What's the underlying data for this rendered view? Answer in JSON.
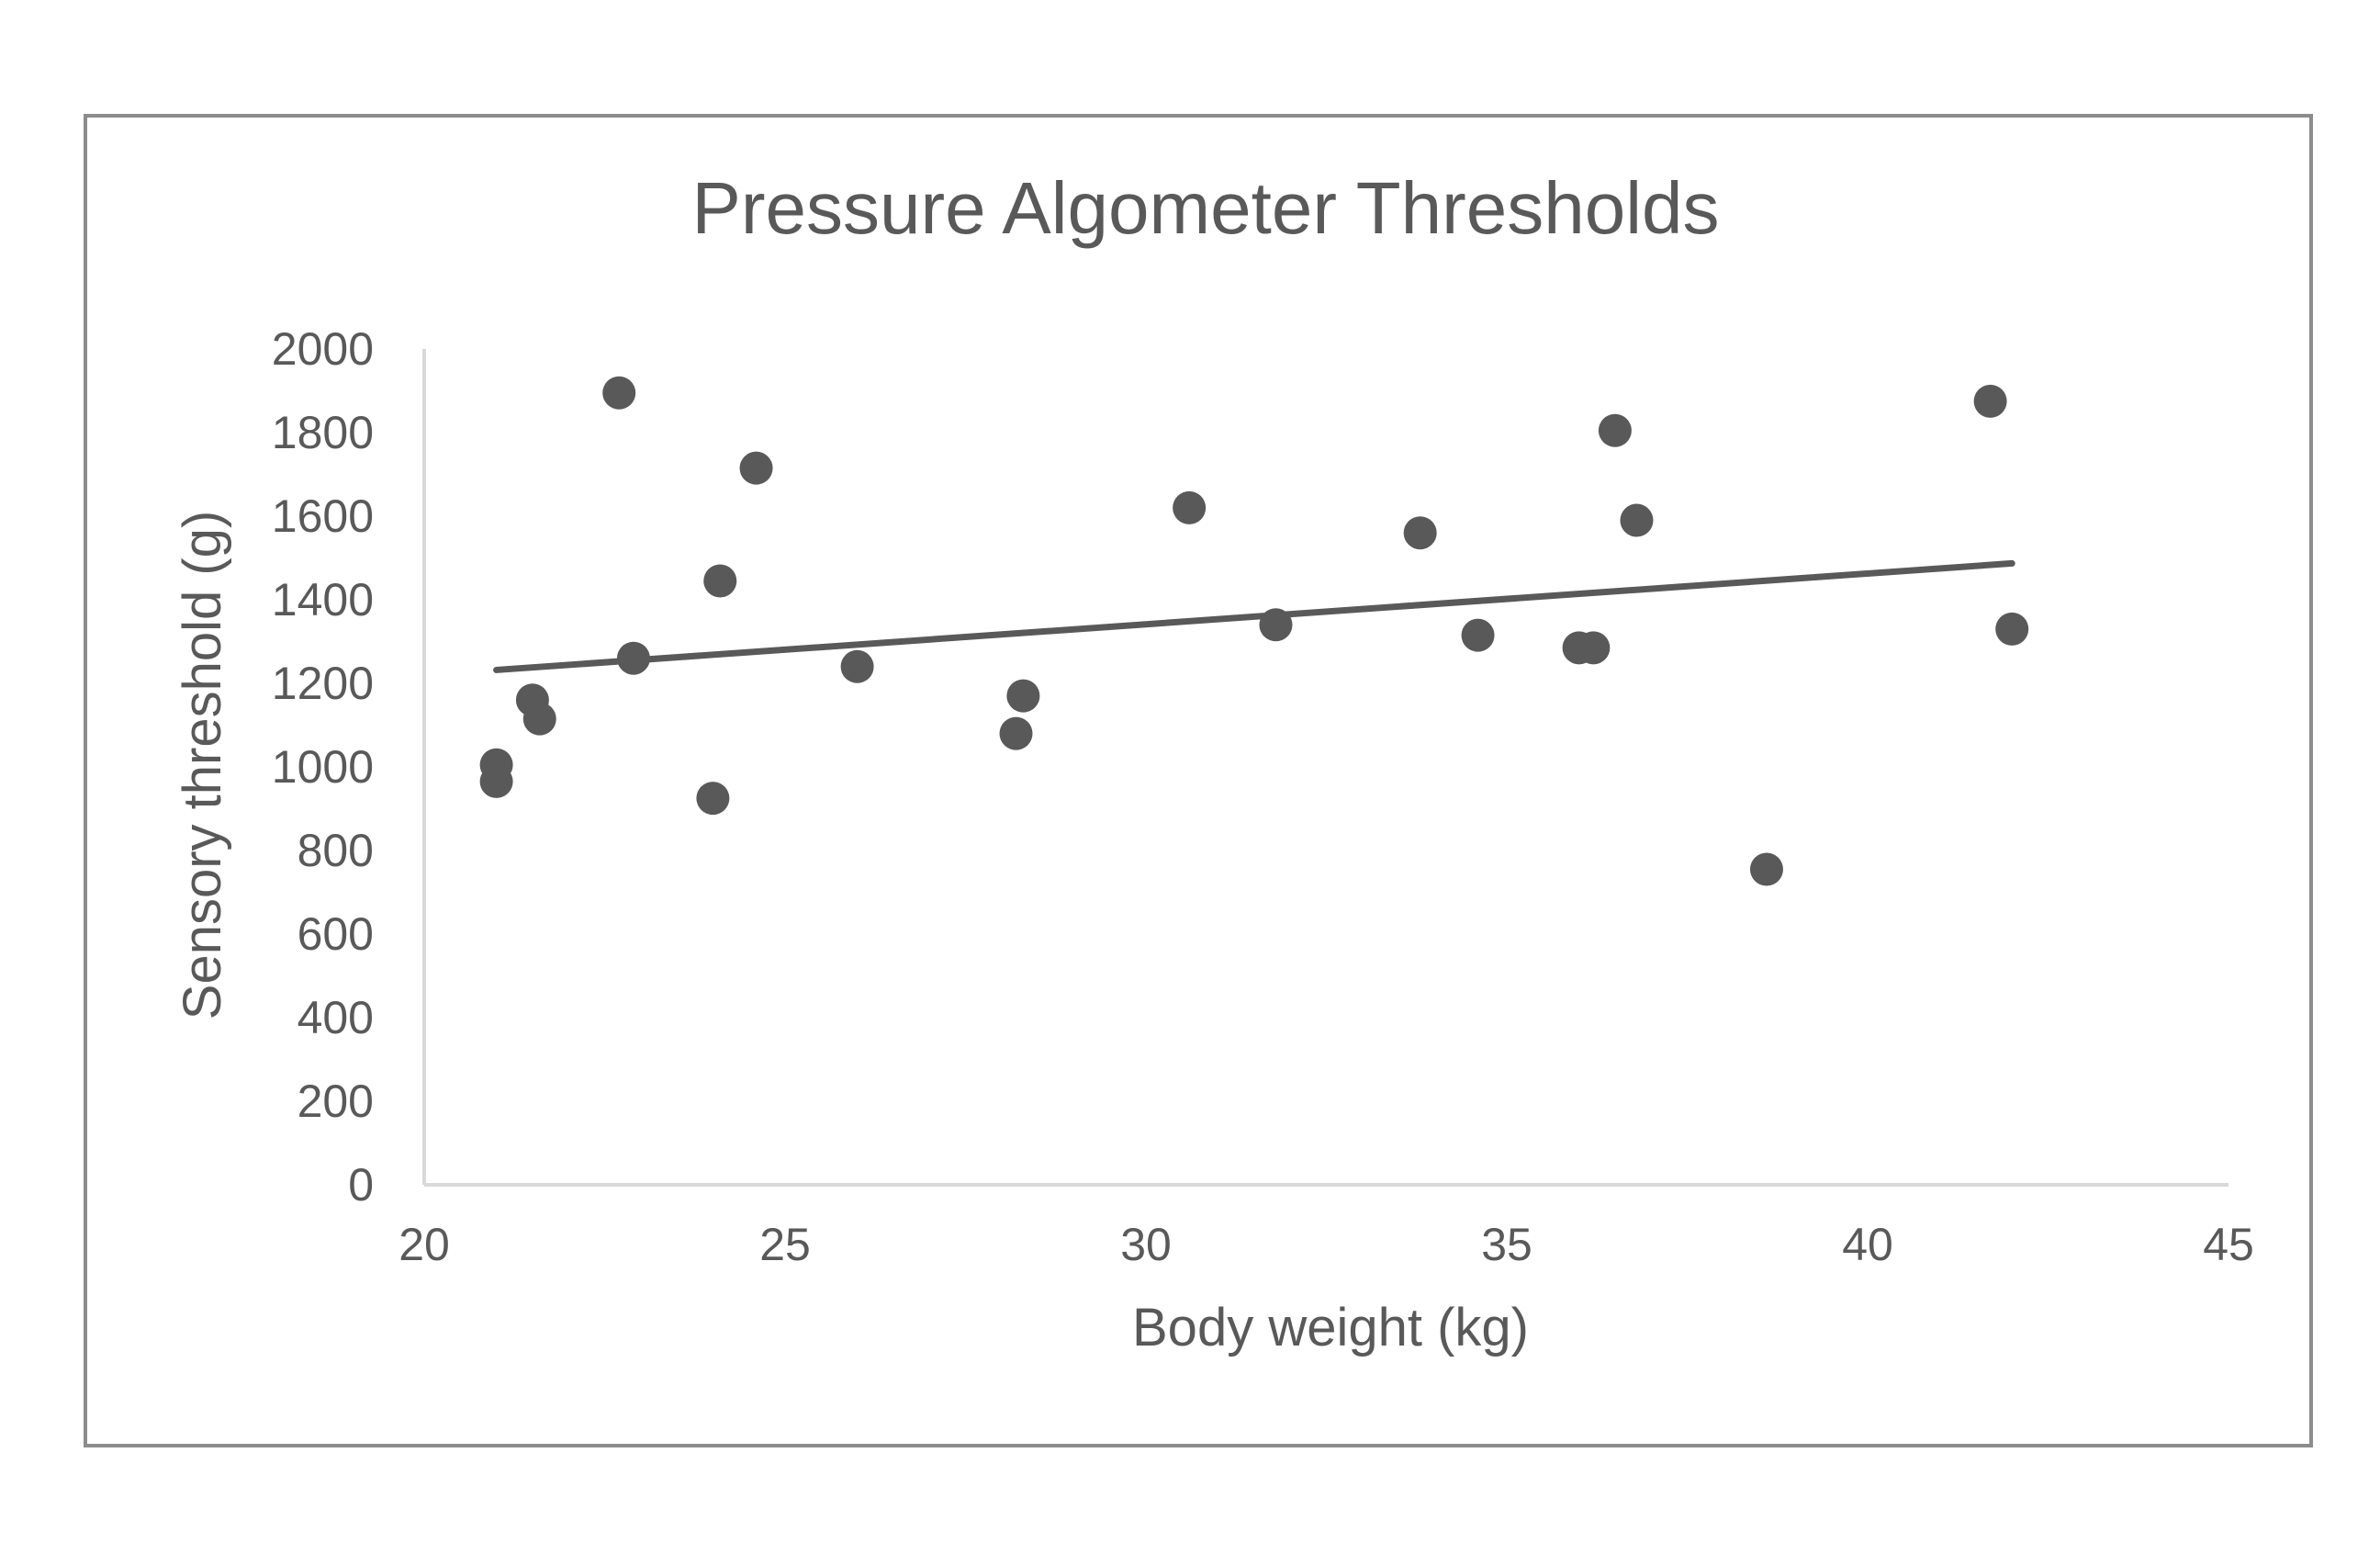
{
  "chart_data": {
    "type": "scatter",
    "title": "Pressure Algometer Thresholds",
    "xlabel": "Body weight (kg)",
    "ylabel": "Sensory threshold (g)",
    "xlim": [
      20,
      45
    ],
    "ylim": [
      0,
      2000
    ],
    "xticks": [
      "20",
      "25",
      "30",
      "35",
      "40",
      "45"
    ],
    "yticks": [
      "0",
      "200",
      "400",
      "600",
      "800",
      "1000",
      "1200",
      "1400",
      "1600",
      "1800",
      "2000"
    ],
    "grid": false,
    "series": [
      {
        "name": "Sensory threshold",
        "x": [
          21.0,
          21.0,
          21.5,
          21.6,
          22.7,
          22.9,
          24.0,
          24.1,
          24.6,
          26.0,
          28.2,
          28.3,
          30.6,
          31.8,
          33.8,
          34.6,
          36.0,
          36.2,
          36.5,
          36.8,
          38.6,
          41.7,
          42.0
        ],
        "y": [
          1005,
          965,
          1160,
          1115,
          1895,
          1260,
          925,
          1445,
          1715,
          1240,
          1080,
          1170,
          1620,
          1340,
          1560,
          1315,
          1285,
          1285,
          1805,
          1590,
          755,
          1875,
          1330
        ]
      }
    ],
    "trendline": {
      "type": "linear",
      "x": [
        21.0,
        42.0
      ],
      "y": [
        1232,
        1487
      ]
    },
    "colors": {
      "marker": "#595959",
      "trendline": "#595959",
      "axis": "#d9d9d9",
      "text": "#595959",
      "frame": "#8c8c8c"
    }
  }
}
